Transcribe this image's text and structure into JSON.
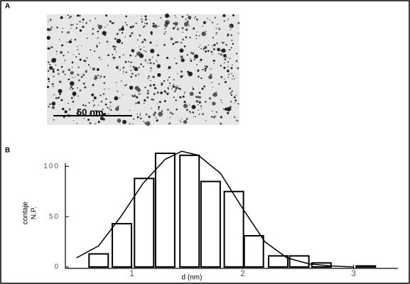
{
  "panel_a": {
    "label": "A",
    "scale_bar_label": "50 nm"
  },
  "chart_data": {
    "type": "bar",
    "panel_label": "B",
    "x_label": "d (nm)",
    "y_label": [
      "contaje",
      "N.P."
    ],
    "x": [
      0.7,
      0.91,
      1.11,
      1.3,
      1.52,
      1.71,
      1.92,
      2.1,
      2.32,
      2.51,
      2.71,
      3.11
    ],
    "values": [
      13,
      43,
      88,
      113,
      111,
      85,
      75,
      31,
      11,
      11,
      4,
      1
    ],
    "color": "#ffffff",
    "fit": {
      "type": "line",
      "color": "#000000",
      "x": [
        0.5,
        0.7,
        0.9,
        1.1,
        1.3,
        1.45,
        1.6,
        1.8,
        2.0,
        2.2,
        2.4,
        2.6,
        2.8,
        3.0
      ],
      "values": [
        9,
        21,
        50,
        83,
        107,
        115,
        111,
        93,
        58,
        25,
        9,
        3,
        1,
        0
      ]
    },
    "xlim": [
      0.4,
      3.4
    ],
    "ylim": [
      0,
      120
    ],
    "xticks": [
      1,
      2,
      3
    ],
    "yticks": [
      0,
      50,
      100
    ]
  }
}
